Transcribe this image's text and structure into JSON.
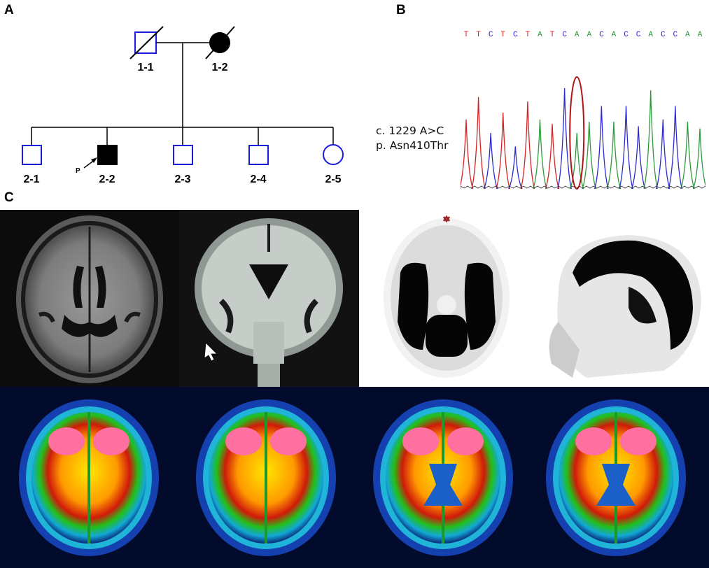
{
  "panels": {
    "a": "A",
    "b": "B",
    "c": "C"
  },
  "pedigree": {
    "generation1": [
      {
        "id": "1-1",
        "sex": "male",
        "affected": false,
        "deceased": true
      },
      {
        "id": "1-2",
        "sex": "female",
        "affected": true,
        "deceased": true
      }
    ],
    "generation2": [
      {
        "id": "2-1",
        "sex": "male",
        "affected": false
      },
      {
        "id": "2-2",
        "sex": "male",
        "affected": true,
        "proband": true
      },
      {
        "id": "2-3",
        "sex": "male",
        "affected": false
      },
      {
        "id": "2-4",
        "sex": "male",
        "affected": false
      },
      {
        "id": "2-5",
        "sex": "female",
        "affected": false
      }
    ],
    "proband_marker": "P",
    "colors": {
      "unaffected_outline": "#1a1adb",
      "affected_fill": "#000000"
    }
  },
  "sequence": {
    "bases": [
      "T",
      "T",
      "C",
      "T",
      "C",
      "T",
      "A",
      "T",
      "C",
      "A",
      "A",
      "C",
      "A",
      "C",
      "C",
      "A",
      "C",
      "C",
      "A",
      "A"
    ],
    "mutation_line1": "c. 1229 A>C",
    "mutation_line2": "p. Asn410Thr",
    "base_colors": {
      "A": "#2e9b3a",
      "C": "#2a2ad0",
      "G": "#111111",
      "T": "#d32424"
    },
    "highlight_color": "#b01616"
  },
  "imaging": {
    "mri_axial": "axial-flair-mri",
    "mri_coronal": "coronal-flair-mri",
    "pet_axial_grey": "axial-pet-greyscale",
    "pet_sagittal_grey": "sagittal-pet-greyscale",
    "pet_color_slices": [
      "pet-slice-1",
      "pet-slice-2",
      "pet-slice-3",
      "pet-slice-4"
    ]
  }
}
